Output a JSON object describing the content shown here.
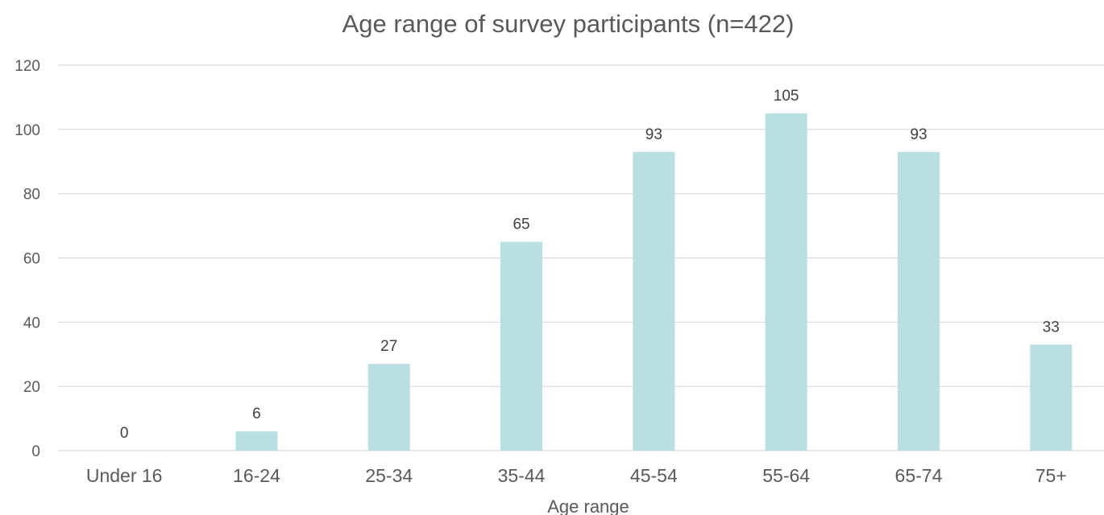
{
  "chart_data": {
    "type": "bar",
    "title": "Age range of survey participants (n=422)",
    "xlabel": "Age range",
    "ylabel": "",
    "categories": [
      "Under 16",
      "16-24",
      "25-34",
      "35-44",
      "45-54",
      "55-64",
      "65-74",
      "75+"
    ],
    "values": [
      0,
      6,
      27,
      65,
      93,
      105,
      93,
      33
    ],
    "ylim": [
      0,
      120
    ],
    "yticks": [
      0,
      20,
      40,
      60,
      80,
      100,
      120
    ],
    "grid": true,
    "legend": "none",
    "bar_color": "#badfe2",
    "gridline_color": "#d9d9d9",
    "text_color": "#595959"
  }
}
